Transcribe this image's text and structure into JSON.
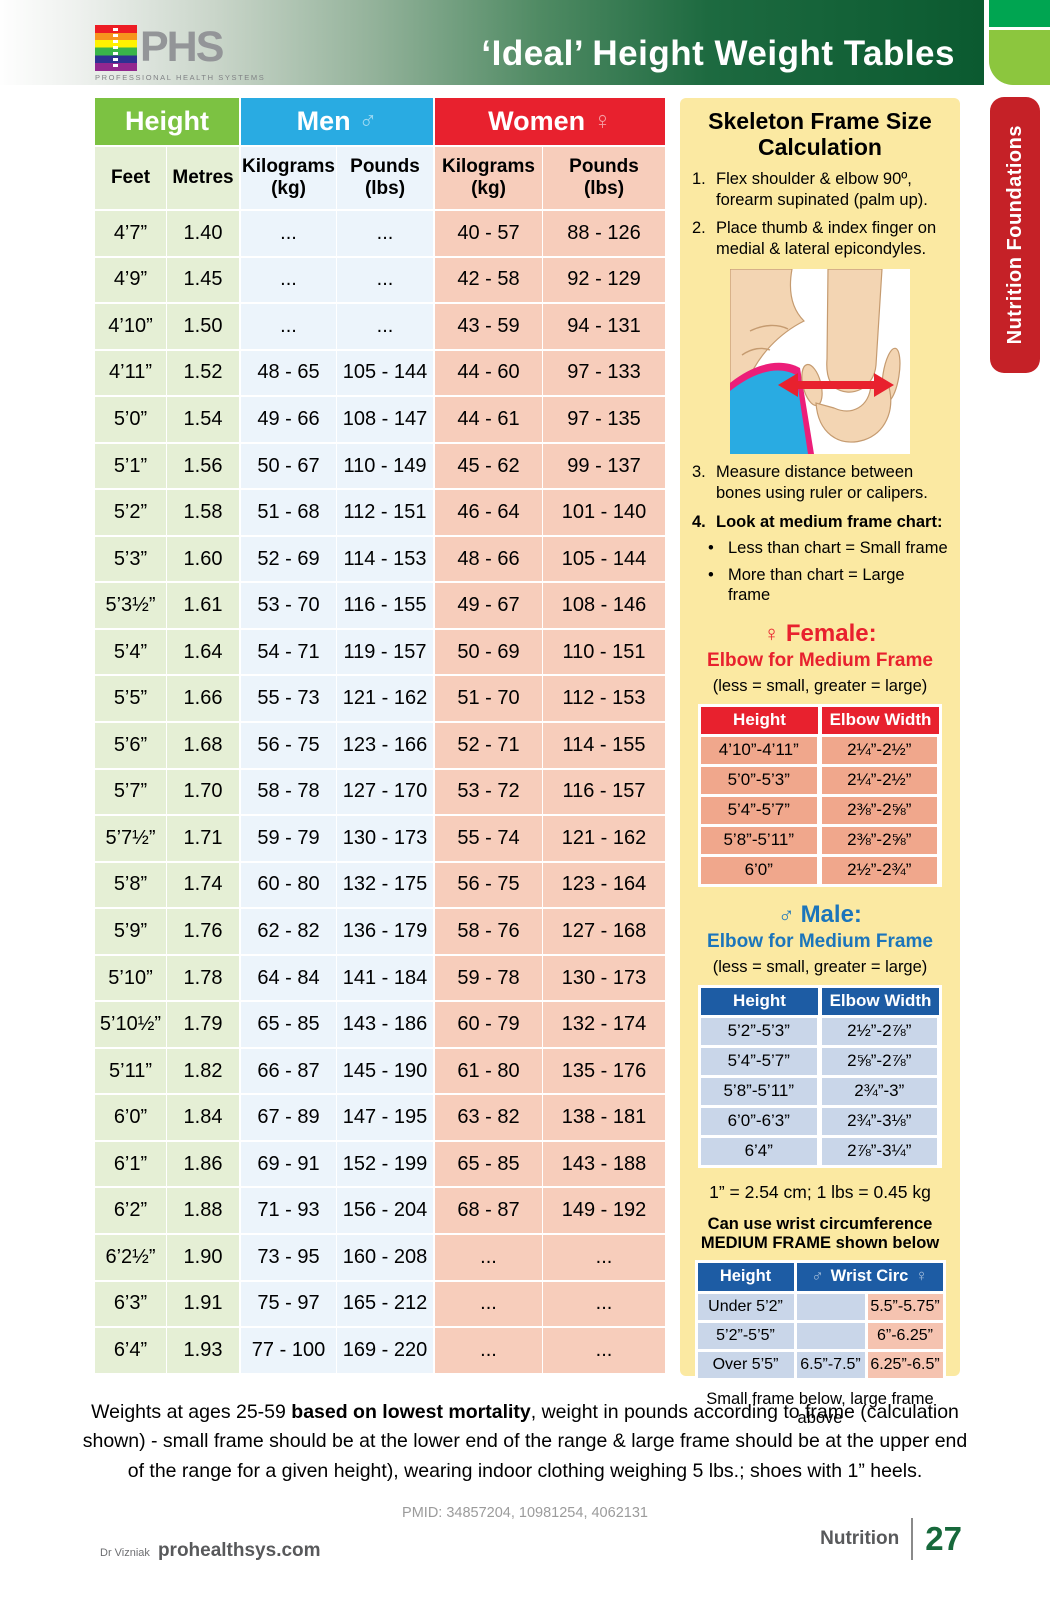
{
  "header": {
    "logo": {
      "abbr": "PHS",
      "tagline": "PROFESSIONAL HEALTH SYSTEMS"
    },
    "title": "‘Ideal’ Height Weight Tables"
  },
  "side_tab": {
    "label": "Nutrition Foundations"
  },
  "main_table": {
    "group_headers": [
      {
        "label": "Height",
        "symbol": ""
      },
      {
        "label": "Men",
        "symbol": "♂"
      },
      {
        "label": "Women",
        "symbol": "♀"
      }
    ],
    "col_headers": [
      "Feet",
      "Metres",
      "Kilograms (kg)",
      "Pounds (lbs)",
      "Kilograms (kg)",
      "Pounds (lbs)"
    ],
    "rows": [
      [
        "4’7”",
        "1.40",
        "...",
        "...",
        "40 - 57",
        "88 - 126"
      ],
      [
        "4’9”",
        "1.45",
        "...",
        "...",
        "42 - 58",
        "92 - 129"
      ],
      [
        "4’10”",
        "1.50",
        "...",
        "...",
        "43 - 59",
        "94 - 131"
      ],
      [
        "4’11”",
        "1.52",
        "48 - 65",
        "105 - 144",
        "44 - 60",
        "97 - 133"
      ],
      [
        "5’0”",
        "1.54",
        "49 - 66",
        "108 - 147",
        "44 - 61",
        "97 - 135"
      ],
      [
        "5’1”",
        "1.56",
        "50 - 67",
        "110 - 149",
        "45 - 62",
        "99 - 137"
      ],
      [
        "5’2”",
        "1.58",
        "51 - 68",
        "112 - 151",
        "46 - 64",
        "101 - 140"
      ],
      [
        "5’3”",
        "1.60",
        "52 - 69",
        "114 - 153",
        "48 - 66",
        "105 - 144"
      ],
      [
        "5’3½”",
        "1.61",
        "53 - 70",
        "116 - 155",
        "49 - 67",
        "108 - 146"
      ],
      [
        "5’4”",
        "1.64",
        "54 - 71",
        "119 - 157",
        "50 - 69",
        "110 - 151"
      ],
      [
        "5’5”",
        "1.66",
        "55 - 73",
        "121 - 162",
        "51 - 70",
        "112 - 153"
      ],
      [
        "5’6”",
        "1.68",
        "56 - 75",
        "123 - 166",
        "52 - 71",
        "114 - 155"
      ],
      [
        "5’7”",
        "1.70",
        "58 - 78",
        "127 - 170",
        "53 - 72",
        "116 - 157"
      ],
      [
        "5’7½”",
        "1.71",
        "59 - 79",
        "130 - 173",
        "55 - 74",
        "121 - 162"
      ],
      [
        "5’8”",
        "1.74",
        "60 - 80",
        "132 - 175",
        "56 - 75",
        "123 - 164"
      ],
      [
        "5’9”",
        "1.76",
        "62 - 82",
        "136 - 179",
        "58 - 76",
        "127 - 168"
      ],
      [
        "5’10”",
        "1.78",
        "64 - 84",
        "141 - 184",
        "59 - 78",
        "130 - 173"
      ],
      [
        "5’10½”",
        "1.79",
        "65 - 85",
        "143 - 186",
        "60 - 79",
        "132 - 174"
      ],
      [
        "5’11”",
        "1.82",
        "66 - 87",
        "145 - 190",
        "61 - 80",
        "135 - 176"
      ],
      [
        "6’0”",
        "1.84",
        "67 - 89",
        "147 - 195",
        "63 - 82",
        "138 - 181"
      ],
      [
        "6’1”",
        "1.86",
        "69 - 91",
        "152 - 199",
        "65 - 85",
        "143 - 188"
      ],
      [
        "6’2”",
        "1.88",
        "71 - 93",
        "156 - 204",
        "68 - 87",
        "149 - 192"
      ],
      [
        "6’2½”",
        "1.90",
        "73 - 95",
        "160 - 208",
        "...",
        "..."
      ],
      [
        "6’3”",
        "1.91",
        "75 - 97",
        "165 - 212",
        "...",
        "..."
      ],
      [
        "6’4”",
        "1.93",
        "77 - 100",
        "169 - 220",
        "...",
        "..."
      ]
    ]
  },
  "panel": {
    "title": "Skeleton Frame Size Calculation",
    "bullet_glyph": "•",
    "steps": [
      {
        "num": "1.",
        "text": "Flex shoulder & elbow 90º, forearm supinated (palm up)."
      },
      {
        "num": "2.",
        "text": "Place thumb & index finger on medial & lateral epicondyles."
      },
      {
        "num": "3.",
        "text": "Measure distance between bones using ruler or calipers."
      },
      {
        "num": "4.",
        "text": "Look at medium frame chart:"
      }
    ],
    "bullets": [
      "Less than chart = Small frame",
      "More than chart = Large frame"
    ],
    "female": {
      "symbol": "♀",
      "title": "Female:",
      "subtitle": "Elbow for Medium Frame",
      "note": "(less = small, greater = large)",
      "table": {
        "headers": [
          "Height",
          "Elbow Width"
        ],
        "rows": [
          [
            "4’10”-4’11”",
            "2¼”-2½”"
          ],
          [
            "5’0”-5’3”",
            "2¼”-2½”"
          ],
          [
            "5’4”-5’7”",
            "2⅜”-2⅝”"
          ],
          [
            "5’8”-5’11”",
            "2⅜”-2⅝”"
          ],
          [
            "6’0”",
            "2½”-2¾”"
          ]
        ]
      }
    },
    "male": {
      "symbol": "♂",
      "title": "Male:",
      "subtitle": "Elbow for Medium Frame",
      "note": "(less = small, greater = large)",
      "table": {
        "headers": [
          "Height",
          "Elbow Width"
        ],
        "rows": [
          [
            "5’2”-5’3”",
            "2½”-2⅞”"
          ],
          [
            "5’4”-5’7”",
            "2⅝”-2⅞”"
          ],
          [
            "5’8”-5’11”",
            "2¾”-3”"
          ],
          [
            "6’0”-6’3”",
            "2¾”-3⅛”"
          ],
          [
            "6’4”",
            "2⅞”-3¼”"
          ]
        ]
      }
    },
    "conversion": "1” = 2.54 cm; 1 lbs = 0.45 kg",
    "wrist": {
      "heading1": "Can use wrist circumference",
      "heading2": "MEDIUM FRAME shown below",
      "headers": [
        "Height",
        "Wrist Circ"
      ],
      "male_symbol": "♂",
      "female_symbol": "♀",
      "table": {
        "rows": [
          [
            "Under 5’2”",
            "",
            "5.5”-5.75”"
          ],
          [
            "5’2”-5’5”",
            "",
            "6”-6.25”"
          ],
          [
            "Over 5’5”",
            "6.5”-7.5”",
            "6.25”-6.5”"
          ]
        ]
      },
      "footnote": "Small frame below, large frame above"
    }
  },
  "footer": {
    "note_part1": "Weights at ages 25-59 ",
    "note_bold": "based on lowest mortality",
    "note_part2": ", weight in pounds according to frame (calculation shown) - small frame should be at the lower end of the range & large frame should be at the upper end of the range for a given height), wearing indoor clothing weighing 5 lbs.; shoes with 1” heels.",
    "pmid": "PMID: 34857204, 10981254, 4062131",
    "author": "Dr Vizniak",
    "site": "prohealthsys.com",
    "section": "Nutrition",
    "page": "27"
  },
  "colors": {
    "header_green": "#0B5A30",
    "corner_green": "#00A551",
    "corner_light_green": "#8CC63E",
    "height_header": "#7CC242",
    "men_header": "#29ABE2",
    "women_header": "#E8212E",
    "height_col_bg": "#E5EFD5",
    "men_col_bg": "#ECF4FB",
    "women_col_bg": "#F7CDBB",
    "panel_yellow": "#FBE9A2",
    "female_row": "#F0A78C",
    "male_row": "#C9D6E9",
    "male_table_header": "#1D5CA4",
    "tab_red": "#C52127",
    "page_number_green": "#17683B"
  }
}
